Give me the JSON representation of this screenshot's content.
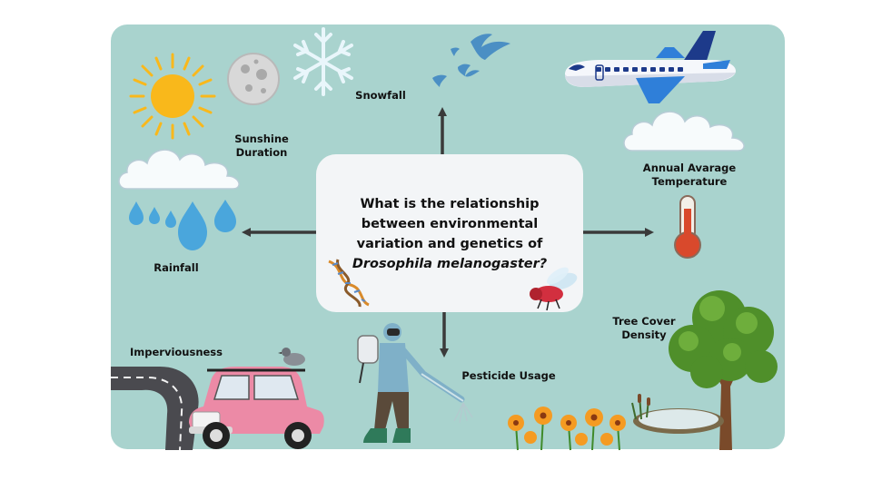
{
  "colors": {
    "background": "#a9d3ce",
    "center_box": "#f3f5f7",
    "arrow": "#3a3a3a",
    "sun": "#f9b81b",
    "rain": "#4aa6dc",
    "plane": "#2f7fd9",
    "car": "#ec8aa6",
    "tree": "#4f8f2a",
    "flower": "#f59b22"
  },
  "question": {
    "line1": "What is the relationship",
    "line2": "between environmental",
    "line3": "variation and genetics of",
    "species": "Drosophila melanogaster?"
  },
  "labels": {
    "snowfall": "Snowfall",
    "sunshine_duration": "Sunshine Duration",
    "rainfall": "Rainfall",
    "annual_temp_line1": "Annual Avarage",
    "annual_temp_line2": "Temperature",
    "tree_cover_line1": "Tree Cover",
    "tree_cover_line2": "Density",
    "imperviousness": "Imperviousness",
    "pesticide_usage": "Pesticide Usage"
  },
  "icons": [
    "sun-icon",
    "moon-icon",
    "snowflake-icon",
    "birds-icon",
    "airplane-icon",
    "cloud-icon",
    "raindrops-icon",
    "thermometer-icon",
    "tree-icon",
    "pond-icon",
    "flowers-icon",
    "car-icon",
    "road-icon",
    "pigeon-icon",
    "sprayer-person-icon",
    "dna-icon",
    "fly-icon"
  ]
}
